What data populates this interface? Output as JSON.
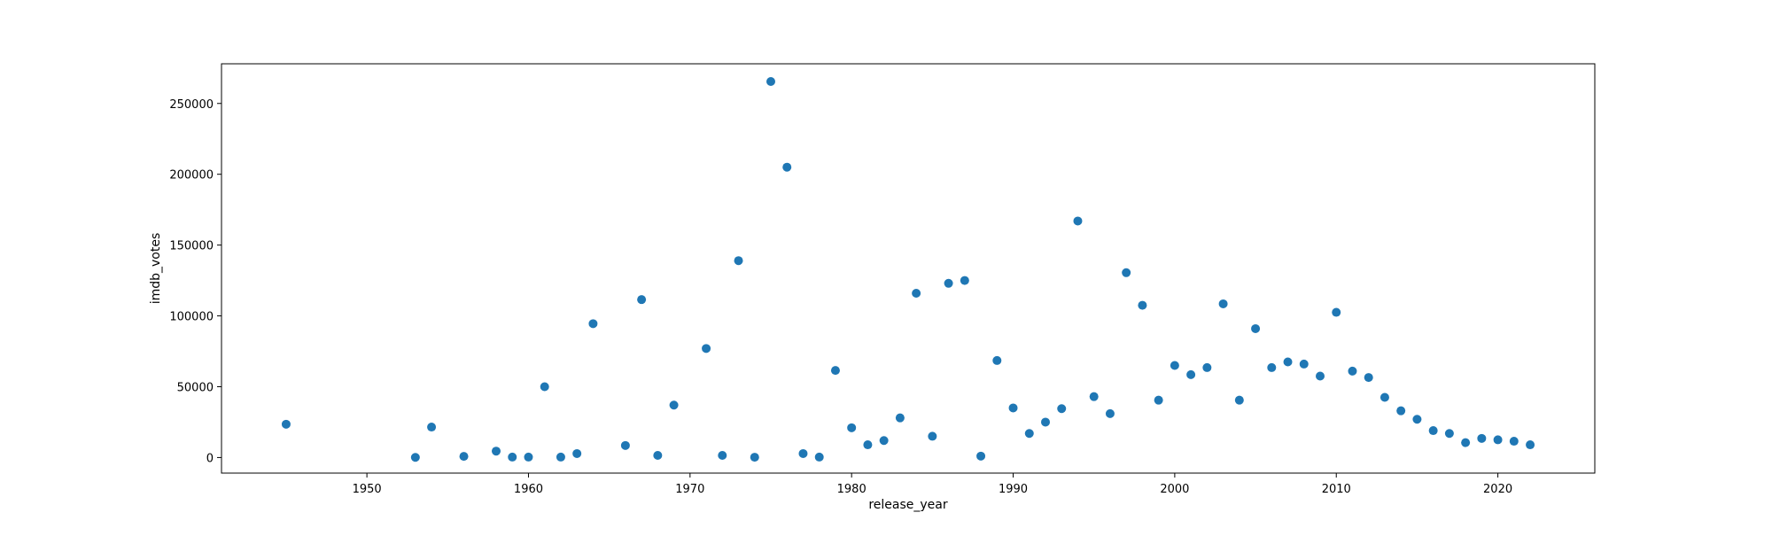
{
  "chart_data": {
    "type": "scatter",
    "title": "",
    "xlabel": "release_year",
    "ylabel": "imdb_votes",
    "xlim": [
      1941,
      2026
    ],
    "ylim": [
      -11000,
      278000
    ],
    "x_ticks": [
      1950,
      1960,
      1970,
      1980,
      1990,
      2000,
      2010,
      2020
    ],
    "y_ticks": [
      0,
      50000,
      100000,
      150000,
      200000,
      250000
    ],
    "grid": false,
    "legend": false,
    "marker_color": "#1f77b4",
    "series": [
      {
        "x": [
          1945,
          1953,
          1954,
          1956,
          1958,
          1959,
          1960,
          1961,
          1962,
          1963,
          1964,
          1966,
          1967,
          1968,
          1969,
          1971,
          1972,
          1973,
          1974,
          1975,
          1976,
          1977,
          1978,
          1979,
          1980,
          1981,
          1982,
          1983,
          1984,
          1985,
          1986,
          1987,
          1988,
          1989,
          1990,
          1991,
          1992,
          1993,
          1994,
          1995,
          1996,
          1997,
          1998,
          1999,
          2000,
          2001,
          2002,
          2003,
          2004,
          2005,
          2006,
          2007,
          2008,
          2009,
          2010,
          2011,
          2012,
          2013,
          2014,
          2015,
          2016,
          2017,
          2018,
          2019,
          2020,
          2021,
          2022
        ],
        "y": [
          23500,
          100,
          21500,
          800,
          4500,
          300,
          300,
          50000,
          300,
          2800,
          94500,
          8500,
          111500,
          1500,
          37000,
          77000,
          1500,
          139000,
          200,
          265500,
          205000,
          2800,
          300,
          61500,
          21000,
          9000,
          12000,
          28000,
          116000,
          15000,
          123000,
          125000,
          1000,
          68500,
          35000,
          17000,
          25000,
          34500,
          167000,
          43000,
          31000,
          130500,
          107500,
          40500,
          65000,
          58500,
          63500,
          108500,
          40500,
          91000,
          63500,
          67500,
          66000,
          57500,
          102500,
          61000,
          56500,
          42500,
          33000,
          27000,
          19000,
          17000,
          10500,
          13500,
          12500,
          11500,
          9000
        ]
      }
    ]
  }
}
